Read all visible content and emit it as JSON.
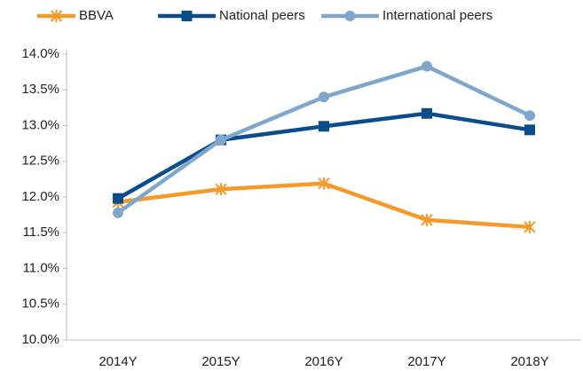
{
  "chart_data": {
    "type": "line",
    "categories": [
      "2014Y",
      "2015Y",
      "2016Y",
      "2017Y",
      "2018Y"
    ],
    "series": [
      {
        "name": "BBVA",
        "color": "#f39a2b",
        "marker": "asterisk",
        "values": [
          11.93,
          12.11,
          12.19,
          11.68,
          11.58
        ]
      },
      {
        "name": "National peers",
        "color": "#0b4c8c",
        "marker": "square",
        "values": [
          11.98,
          12.8,
          12.99,
          13.17,
          12.94
        ]
      },
      {
        "name": "International peers",
        "color": "#7fa7cc",
        "marker": "circle",
        "values": [
          11.78,
          12.8,
          13.4,
          13.83,
          13.14
        ]
      }
    ],
    "ylim": [
      10,
      14
    ],
    "yticks": [
      {
        "value": 10,
        "label": "10.0%"
      },
      {
        "value": 10.5,
        "label": "10.5%"
      },
      {
        "value": 11,
        "label": "11.0%"
      },
      {
        "value": 11.5,
        "label": "11.5%"
      },
      {
        "value": 12,
        "label": "12.0%"
      },
      {
        "value": 12.5,
        "label": "12.5%"
      },
      {
        "value": 13,
        "label": "13.0%"
      },
      {
        "value": 13.5,
        "label": "13.5%"
      },
      {
        "value": 14,
        "label": "14.0%"
      }
    ],
    "grid": false,
    "legend": "top"
  }
}
